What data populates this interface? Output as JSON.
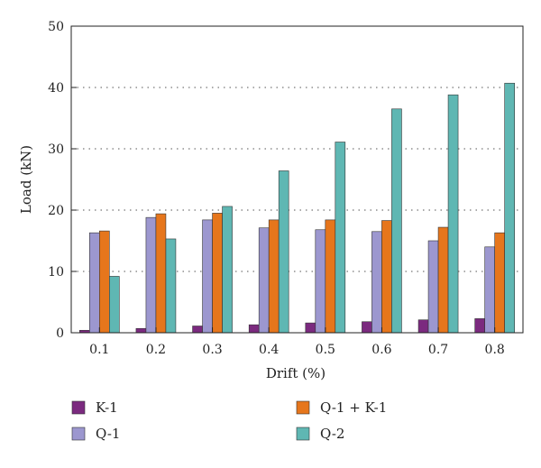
{
  "chart_data": {
    "type": "bar",
    "title": "",
    "xlabel": "Drift (%)",
    "ylabel": "Load (kN)",
    "categories": [
      "0.1",
      "0.2",
      "0.3",
      "0.4",
      "0.5",
      "0.6",
      "0.7",
      "0.8"
    ],
    "ylim": [
      0,
      50
    ],
    "yticks": [
      "0",
      "10",
      "20",
      "30",
      "40",
      "50"
    ],
    "grid": "horizontal-dotted",
    "legend_position": "bottom",
    "series": [
      {
        "name": "K-1",
        "color": "#7B2A7F",
        "values": [
          0.4,
          0.7,
          1.1,
          1.3,
          1.6,
          1.8,
          2.1,
          2.3
        ]
      },
      {
        "name": "Q-1",
        "color": "#9C97CF",
        "values": [
          16.3,
          18.8,
          18.4,
          17.1,
          16.8,
          16.5,
          15.0,
          14.0
        ]
      },
      {
        "name": "Q-1 + K-1",
        "color": "#E6761C",
        "values": [
          16.6,
          19.4,
          19.5,
          18.4,
          18.4,
          18.3,
          17.2,
          16.3
        ]
      },
      {
        "name": "Q-2",
        "color": "#5FB7B3",
        "values": [
          9.2,
          15.3,
          20.6,
          26.4,
          31.1,
          36.5,
          38.8,
          40.7
        ]
      }
    ]
  }
}
